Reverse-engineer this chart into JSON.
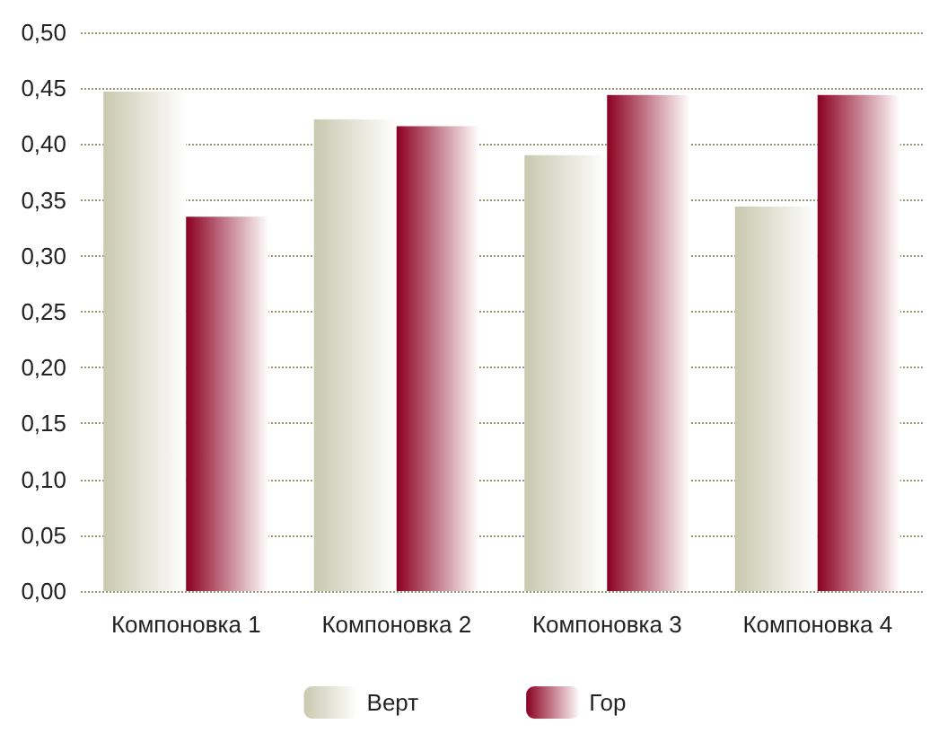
{
  "chart_data": {
    "type": "bar",
    "categories": [
      "Компоновка 1",
      "Компоновка 2",
      "Компоновка 3",
      "Компоновка 4"
    ],
    "series": [
      {
        "name": "Верт",
        "color": "#c9c9b0",
        "values": [
          0.447,
          0.422,
          0.39,
          0.344
        ]
      },
      {
        "name": "Гор",
        "color": "#8b0020",
        "values": [
          0.335,
          0.416,
          0.444,
          0.444
        ]
      }
    ],
    "ylim": [
      0,
      0.5
    ],
    "yticks": [
      {
        "value": 0,
        "label": "0,00"
      },
      {
        "value": 0.05,
        "label": "0,05"
      },
      {
        "value": 0.1,
        "label": "0,10"
      },
      {
        "value": 0.15,
        "label": "0,15"
      },
      {
        "value": 0.2,
        "label": "0,20"
      },
      {
        "value": 0.25,
        "label": "0,25"
      },
      {
        "value": 0.3,
        "label": "0,30"
      },
      {
        "value": 0.35,
        "label": "0,35"
      },
      {
        "value": 0.4,
        "label": "0,40"
      },
      {
        "value": 0.45,
        "label": "0,45"
      },
      {
        "value": 0.5,
        "label": "0,50"
      }
    ],
    "grid": "y",
    "legend": "bottom"
  }
}
